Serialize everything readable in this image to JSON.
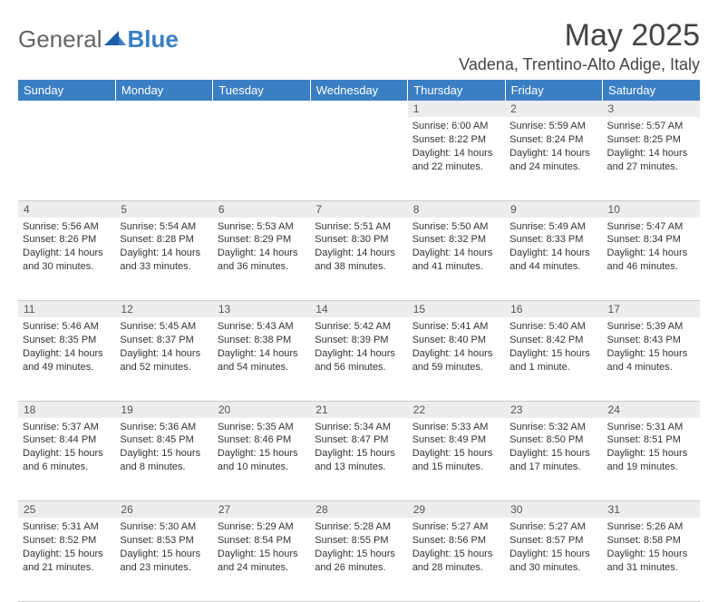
{
  "brand": {
    "part1": "General",
    "part2": "Blue"
  },
  "title": "May 2025",
  "location": "Vadena, Trentino-Alto Adige, Italy",
  "colors": {
    "header_bg": "#3a7fc4",
    "header_text": "#ffffff",
    "daynum_bg": "#eceded",
    "border": "#cccccc",
    "text": "#333333"
  },
  "day_headers": [
    "Sunday",
    "Monday",
    "Tuesday",
    "Wednesday",
    "Thursday",
    "Friday",
    "Saturday"
  ],
  "weeks": [
    [
      null,
      null,
      null,
      null,
      {
        "n": "1",
        "sr": "Sunrise: 6:00 AM",
        "ss": "Sunset: 8:22 PM",
        "dl1": "Daylight: 14 hours",
        "dl2": "and 22 minutes."
      },
      {
        "n": "2",
        "sr": "Sunrise: 5:59 AM",
        "ss": "Sunset: 8:24 PM",
        "dl1": "Daylight: 14 hours",
        "dl2": "and 24 minutes."
      },
      {
        "n": "3",
        "sr": "Sunrise: 5:57 AM",
        "ss": "Sunset: 8:25 PM",
        "dl1": "Daylight: 14 hours",
        "dl2": "and 27 minutes."
      }
    ],
    [
      {
        "n": "4",
        "sr": "Sunrise: 5:56 AM",
        "ss": "Sunset: 8:26 PM",
        "dl1": "Daylight: 14 hours",
        "dl2": "and 30 minutes."
      },
      {
        "n": "5",
        "sr": "Sunrise: 5:54 AM",
        "ss": "Sunset: 8:28 PM",
        "dl1": "Daylight: 14 hours",
        "dl2": "and 33 minutes."
      },
      {
        "n": "6",
        "sr": "Sunrise: 5:53 AM",
        "ss": "Sunset: 8:29 PM",
        "dl1": "Daylight: 14 hours",
        "dl2": "and 36 minutes."
      },
      {
        "n": "7",
        "sr": "Sunrise: 5:51 AM",
        "ss": "Sunset: 8:30 PM",
        "dl1": "Daylight: 14 hours",
        "dl2": "and 38 minutes."
      },
      {
        "n": "8",
        "sr": "Sunrise: 5:50 AM",
        "ss": "Sunset: 8:32 PM",
        "dl1": "Daylight: 14 hours",
        "dl2": "and 41 minutes."
      },
      {
        "n": "9",
        "sr": "Sunrise: 5:49 AM",
        "ss": "Sunset: 8:33 PM",
        "dl1": "Daylight: 14 hours",
        "dl2": "and 44 minutes."
      },
      {
        "n": "10",
        "sr": "Sunrise: 5:47 AM",
        "ss": "Sunset: 8:34 PM",
        "dl1": "Daylight: 14 hours",
        "dl2": "and 46 minutes."
      }
    ],
    [
      {
        "n": "11",
        "sr": "Sunrise: 5:46 AM",
        "ss": "Sunset: 8:35 PM",
        "dl1": "Daylight: 14 hours",
        "dl2": "and 49 minutes."
      },
      {
        "n": "12",
        "sr": "Sunrise: 5:45 AM",
        "ss": "Sunset: 8:37 PM",
        "dl1": "Daylight: 14 hours",
        "dl2": "and 52 minutes."
      },
      {
        "n": "13",
        "sr": "Sunrise: 5:43 AM",
        "ss": "Sunset: 8:38 PM",
        "dl1": "Daylight: 14 hours",
        "dl2": "and 54 minutes."
      },
      {
        "n": "14",
        "sr": "Sunrise: 5:42 AM",
        "ss": "Sunset: 8:39 PM",
        "dl1": "Daylight: 14 hours",
        "dl2": "and 56 minutes."
      },
      {
        "n": "15",
        "sr": "Sunrise: 5:41 AM",
        "ss": "Sunset: 8:40 PM",
        "dl1": "Daylight: 14 hours",
        "dl2": "and 59 minutes."
      },
      {
        "n": "16",
        "sr": "Sunrise: 5:40 AM",
        "ss": "Sunset: 8:42 PM",
        "dl1": "Daylight: 15 hours",
        "dl2": "and 1 minute."
      },
      {
        "n": "17",
        "sr": "Sunrise: 5:39 AM",
        "ss": "Sunset: 8:43 PM",
        "dl1": "Daylight: 15 hours",
        "dl2": "and 4 minutes."
      }
    ],
    [
      {
        "n": "18",
        "sr": "Sunrise: 5:37 AM",
        "ss": "Sunset: 8:44 PM",
        "dl1": "Daylight: 15 hours",
        "dl2": "and 6 minutes."
      },
      {
        "n": "19",
        "sr": "Sunrise: 5:36 AM",
        "ss": "Sunset: 8:45 PM",
        "dl1": "Daylight: 15 hours",
        "dl2": "and 8 minutes."
      },
      {
        "n": "20",
        "sr": "Sunrise: 5:35 AM",
        "ss": "Sunset: 8:46 PM",
        "dl1": "Daylight: 15 hours",
        "dl2": "and 10 minutes."
      },
      {
        "n": "21",
        "sr": "Sunrise: 5:34 AM",
        "ss": "Sunset: 8:47 PM",
        "dl1": "Daylight: 15 hours",
        "dl2": "and 13 minutes."
      },
      {
        "n": "22",
        "sr": "Sunrise: 5:33 AM",
        "ss": "Sunset: 8:49 PM",
        "dl1": "Daylight: 15 hours",
        "dl2": "and 15 minutes."
      },
      {
        "n": "23",
        "sr": "Sunrise: 5:32 AM",
        "ss": "Sunset: 8:50 PM",
        "dl1": "Daylight: 15 hours",
        "dl2": "and 17 minutes."
      },
      {
        "n": "24",
        "sr": "Sunrise: 5:31 AM",
        "ss": "Sunset: 8:51 PM",
        "dl1": "Daylight: 15 hours",
        "dl2": "and 19 minutes."
      }
    ],
    [
      {
        "n": "25",
        "sr": "Sunrise: 5:31 AM",
        "ss": "Sunset: 8:52 PM",
        "dl1": "Daylight: 15 hours",
        "dl2": "and 21 minutes."
      },
      {
        "n": "26",
        "sr": "Sunrise: 5:30 AM",
        "ss": "Sunset: 8:53 PM",
        "dl1": "Daylight: 15 hours",
        "dl2": "and 23 minutes."
      },
      {
        "n": "27",
        "sr": "Sunrise: 5:29 AM",
        "ss": "Sunset: 8:54 PM",
        "dl1": "Daylight: 15 hours",
        "dl2": "and 24 minutes."
      },
      {
        "n": "28",
        "sr": "Sunrise: 5:28 AM",
        "ss": "Sunset: 8:55 PM",
        "dl1": "Daylight: 15 hours",
        "dl2": "and 26 minutes."
      },
      {
        "n": "29",
        "sr": "Sunrise: 5:27 AM",
        "ss": "Sunset: 8:56 PM",
        "dl1": "Daylight: 15 hours",
        "dl2": "and 28 minutes."
      },
      {
        "n": "30",
        "sr": "Sunrise: 5:27 AM",
        "ss": "Sunset: 8:57 PM",
        "dl1": "Daylight: 15 hours",
        "dl2": "and 30 minutes."
      },
      {
        "n": "31",
        "sr": "Sunrise: 5:26 AM",
        "ss": "Sunset: 8:58 PM",
        "dl1": "Daylight: 15 hours",
        "dl2": "and 31 minutes."
      }
    ]
  ]
}
